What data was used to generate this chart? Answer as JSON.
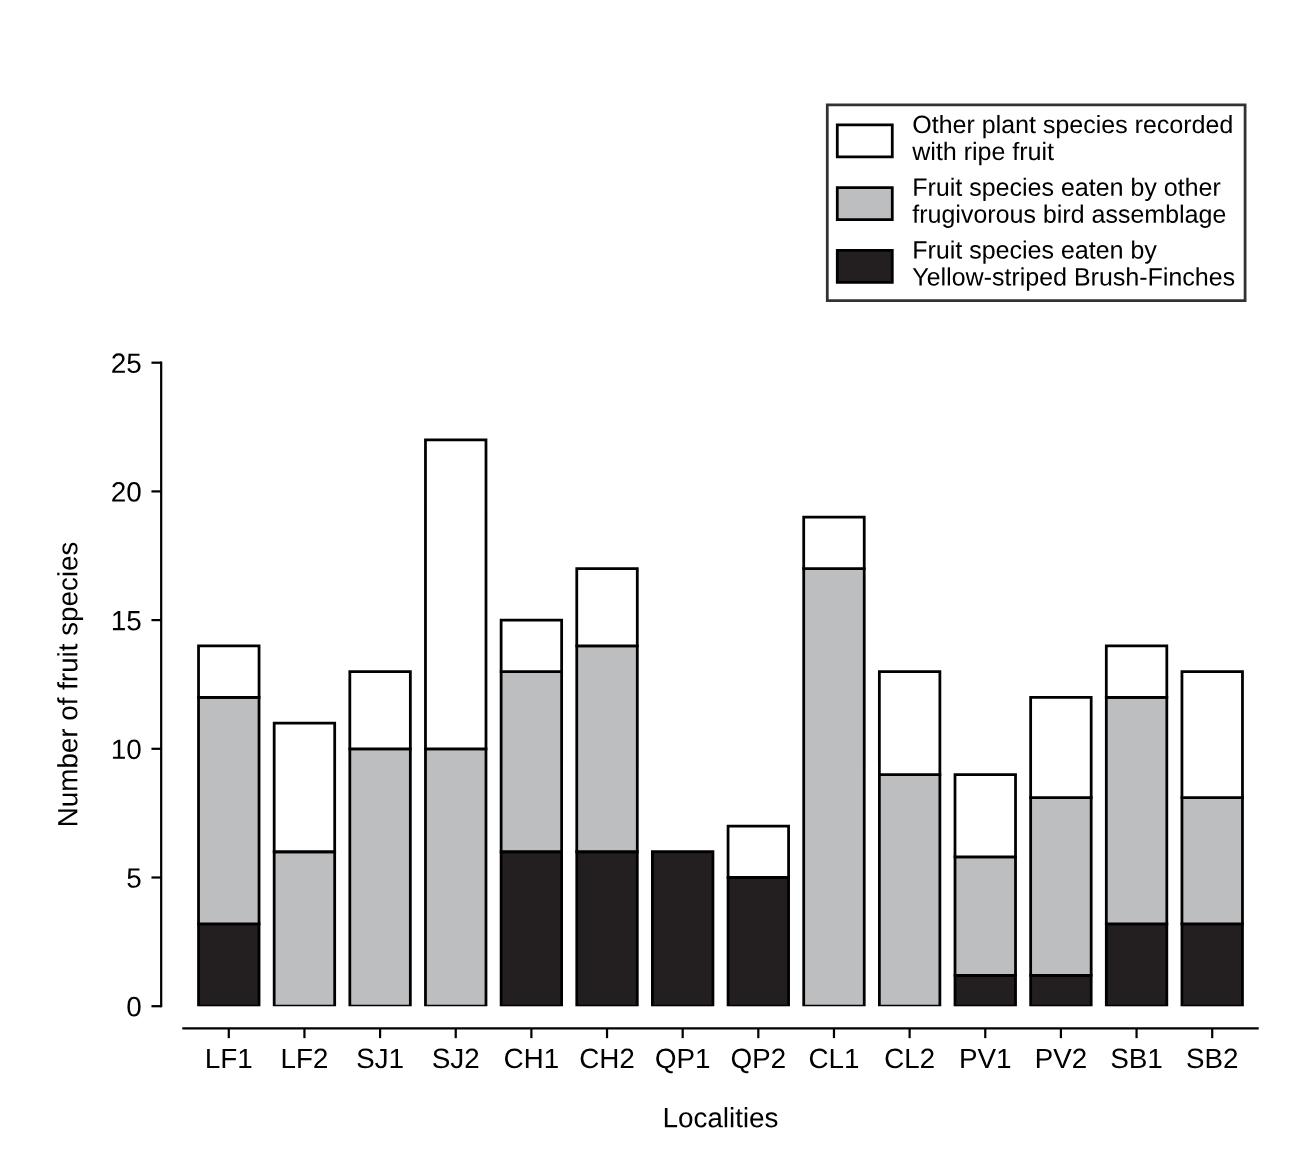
{
  "chart_data": {
    "type": "bar",
    "stacked": true,
    "xlabel": "Localities",
    "ylabel": "Number of fruit species",
    "categories": [
      "LF1",
      "LF2",
      "SJ1",
      "SJ2",
      "CH1",
      "CH2",
      "QP1",
      "QP2",
      "CL1",
      "CL2",
      "PV1",
      "PV2",
      "SB1",
      "SB2"
    ],
    "series": [
      {
        "name": "Fruit species eaten by\nYellow-striped Brush-Finches",
        "color": "#231f20",
        "values": [
          3.2,
          0,
          0,
          0,
          6,
          6,
          6,
          5,
          0,
          0,
          1.2,
          1.2,
          3.2,
          3.2
        ]
      },
      {
        "name": "Fruit species eaten by other\nfrugivorous bird assemblage",
        "color": "#bcbec0",
        "values": [
          8.8,
          6,
          10,
          10,
          7,
          8,
          0,
          0,
          17,
          9,
          4.6,
          6.9,
          8.8,
          4.9
        ]
      },
      {
        "name": "Other plant species recorded\nwith ripe fruit",
        "color": "#ffffff",
        "values": [
          2,
          5,
          3,
          12,
          2,
          3,
          0,
          2,
          2,
          4,
          3.2,
          3.9,
          2,
          4.9
        ]
      }
    ],
    "ylim": [
      0,
      25
    ],
    "yticks": [
      0,
      5,
      10,
      15,
      20,
      25
    ],
    "legend": "top right",
    "grid": false
  }
}
